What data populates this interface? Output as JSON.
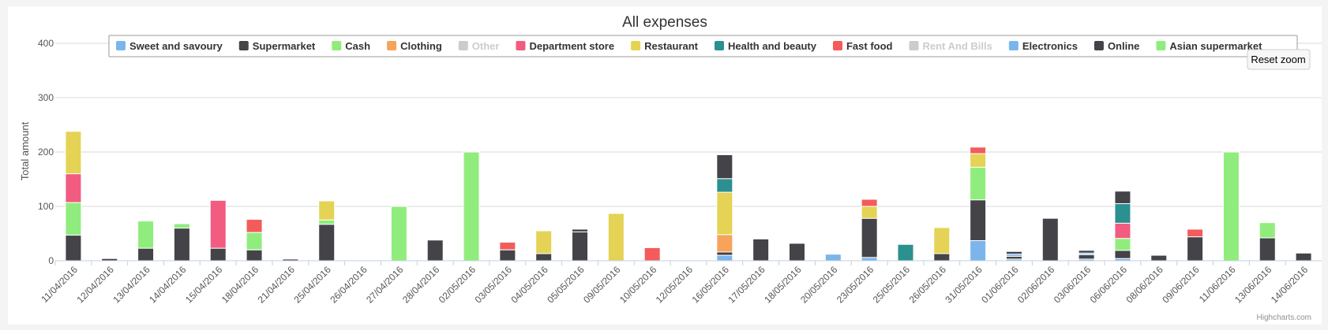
{
  "chart_data": {
    "type": "bar",
    "stacked": true,
    "title": "All expenses",
    "xlabel": "",
    "ylabel": "Total amount",
    "ylim": [
      0,
      400
    ],
    "yticks": [
      0,
      100,
      200,
      300,
      400
    ],
    "grid": true,
    "legend_position": "top",
    "credits": "Highcharts.com",
    "reset_zoom_label": "Reset zoom",
    "categories": [
      "11/04/2016",
      "12/04/2016",
      "13/04/2016",
      "14/04/2016",
      "15/04/2016",
      "18/04/2016",
      "21/04/2016",
      "25/04/2016",
      "26/04/2016",
      "27/04/2016",
      "28/04/2016",
      "02/05/2016",
      "03/05/2016",
      "04/05/2016",
      "05/05/2016",
      "09/05/2016",
      "10/05/2016",
      "12/05/2016",
      "16/05/2016",
      "17/05/2016",
      "18/05/2016",
      "20/05/2016",
      "23/05/2016",
      "25/05/2016",
      "26/05/2016",
      "31/05/2016",
      "01/06/2016",
      "02/06/2016",
      "03/06/2016",
      "06/06/2016",
      "08/06/2016",
      "09/06/2016",
      "11/06/2016",
      "13/06/2016",
      "14/06/2016"
    ],
    "series": [
      {
        "name": "Sweet and savoury",
        "color": "#7cb5ec",
        "visible": true,
        "values": [
          0,
          0,
          0,
          0,
          0,
          0,
          0,
          0,
          0,
          0,
          0,
          0,
          0,
          0,
          0,
          0,
          0,
          0,
          10,
          0,
          0,
          12,
          6,
          0,
          0,
          37,
          3,
          0,
          3,
          4,
          0,
          0,
          0,
          0,
          0
        ]
      },
      {
        "name": "Supermarket",
        "color": "#434348",
        "visible": true,
        "values": [
          47,
          4,
          23,
          60,
          23,
          20,
          3,
          67,
          0,
          0,
          38,
          0,
          20,
          13,
          53,
          0,
          0,
          0,
          6,
          40,
          32,
          0,
          72,
          0,
          13,
          75,
          5,
          78,
          8,
          15,
          10,
          44,
          0,
          42,
          14
        ]
      },
      {
        "name": "Cash",
        "color": "#90ed7d",
        "visible": true,
        "values": [
          60,
          0,
          50,
          8,
          0,
          32,
          0,
          8,
          0,
          100,
          0,
          200,
          0,
          0,
          0,
          0,
          0,
          0,
          0,
          0,
          0,
          0,
          0,
          0,
          0,
          60,
          0,
          0,
          0,
          22,
          0,
          0,
          200,
          28,
          0
        ]
      },
      {
        "name": "Clothing",
        "color": "#f7a35c",
        "visible": true,
        "values": [
          0,
          0,
          0,
          0,
          0,
          0,
          0,
          0,
          0,
          0,
          0,
          0,
          0,
          0,
          0,
          0,
          0,
          0,
          32,
          0,
          0,
          0,
          0,
          0,
          0,
          0,
          0,
          0,
          0,
          0,
          0,
          0,
          0,
          0,
          0
        ]
      },
      {
        "name": "Other",
        "color": "#cccccc",
        "visible": false,
        "values": [
          0,
          0,
          0,
          0,
          0,
          0,
          0,
          0,
          0,
          0,
          0,
          0,
          0,
          0,
          0,
          0,
          0,
          0,
          0,
          0,
          0,
          0,
          0,
          0,
          0,
          0,
          0,
          0,
          0,
          0,
          0,
          0,
          0,
          0,
          0
        ]
      },
      {
        "name": "Department store",
        "color": "#f15c80",
        "visible": true,
        "values": [
          53,
          0,
          0,
          0,
          88,
          0,
          0,
          0,
          0,
          0,
          0,
          0,
          0,
          0,
          0,
          0,
          0,
          0,
          0,
          0,
          0,
          0,
          0,
          0,
          0,
          0,
          0,
          0,
          0,
          28,
          0,
          0,
          0,
          0,
          0
        ]
      },
      {
        "name": "Restaurant",
        "color": "#e4d354",
        "visible": true,
        "values": [
          78,
          0,
          0,
          0,
          0,
          0,
          0,
          35,
          0,
          0,
          0,
          0,
          0,
          42,
          0,
          87,
          0,
          0,
          78,
          0,
          0,
          0,
          22,
          0,
          48,
          25,
          0,
          0,
          0,
          0,
          0,
          0,
          0,
          0,
          0
        ]
      },
      {
        "name": "Health and beauty",
        "color": "#2b908f",
        "visible": true,
        "values": [
          0,
          0,
          0,
          0,
          0,
          0,
          0,
          0,
          0,
          0,
          0,
          0,
          0,
          0,
          0,
          0,
          0,
          0,
          25,
          0,
          0,
          0,
          0,
          30,
          0,
          0,
          0,
          0,
          0,
          36,
          0,
          0,
          0,
          0,
          0
        ]
      },
      {
        "name": "Fast food",
        "color": "#f45b5b",
        "visible": true,
        "values": [
          0,
          0,
          0,
          0,
          0,
          24,
          0,
          0,
          0,
          0,
          0,
          0,
          14,
          0,
          0,
          0,
          24,
          0,
          0,
          0,
          0,
          0,
          13,
          0,
          0,
          12,
          0,
          0,
          0,
          0,
          0,
          14,
          0,
          0,
          0
        ]
      },
      {
        "name": "Rent And Bills",
        "color": "#cccccc",
        "visible": false,
        "values": [
          0,
          0,
          0,
          0,
          0,
          0,
          0,
          0,
          0,
          0,
          0,
          0,
          0,
          0,
          0,
          0,
          0,
          0,
          0,
          0,
          0,
          0,
          0,
          0,
          0,
          0,
          0,
          0,
          0,
          0,
          0,
          0,
          0,
          0,
          0
        ]
      },
      {
        "name": "Electronics",
        "color": "#7cb5ec",
        "visible": true,
        "values": [
          0,
          0,
          0,
          0,
          0,
          0,
          0,
          0,
          0,
          0,
          0,
          0,
          0,
          0,
          0,
          0,
          0,
          0,
          0,
          0,
          0,
          0,
          0,
          0,
          0,
          0,
          4,
          0,
          3,
          0,
          0,
          0,
          0,
          0,
          0
        ]
      },
      {
        "name": "Online",
        "color": "#434348",
        "visible": true,
        "values": [
          0,
          0,
          0,
          0,
          0,
          0,
          0,
          0,
          0,
          0,
          0,
          0,
          0,
          0,
          5,
          0,
          0,
          0,
          44,
          0,
          0,
          0,
          0,
          0,
          0,
          0,
          5,
          0,
          5,
          23,
          0,
          0,
          0,
          0,
          0
        ]
      },
      {
        "name": "Asian supermarket",
        "color": "#90ed7d",
        "visible": true,
        "values": [
          0,
          0,
          0,
          0,
          0,
          0,
          0,
          0,
          0,
          0,
          0,
          0,
          0,
          0,
          0,
          0,
          0,
          0,
          0,
          0,
          0,
          0,
          0,
          0,
          0,
          0,
          0,
          0,
          0,
          0,
          0,
          0,
          0,
          0,
          0
        ]
      }
    ]
  }
}
